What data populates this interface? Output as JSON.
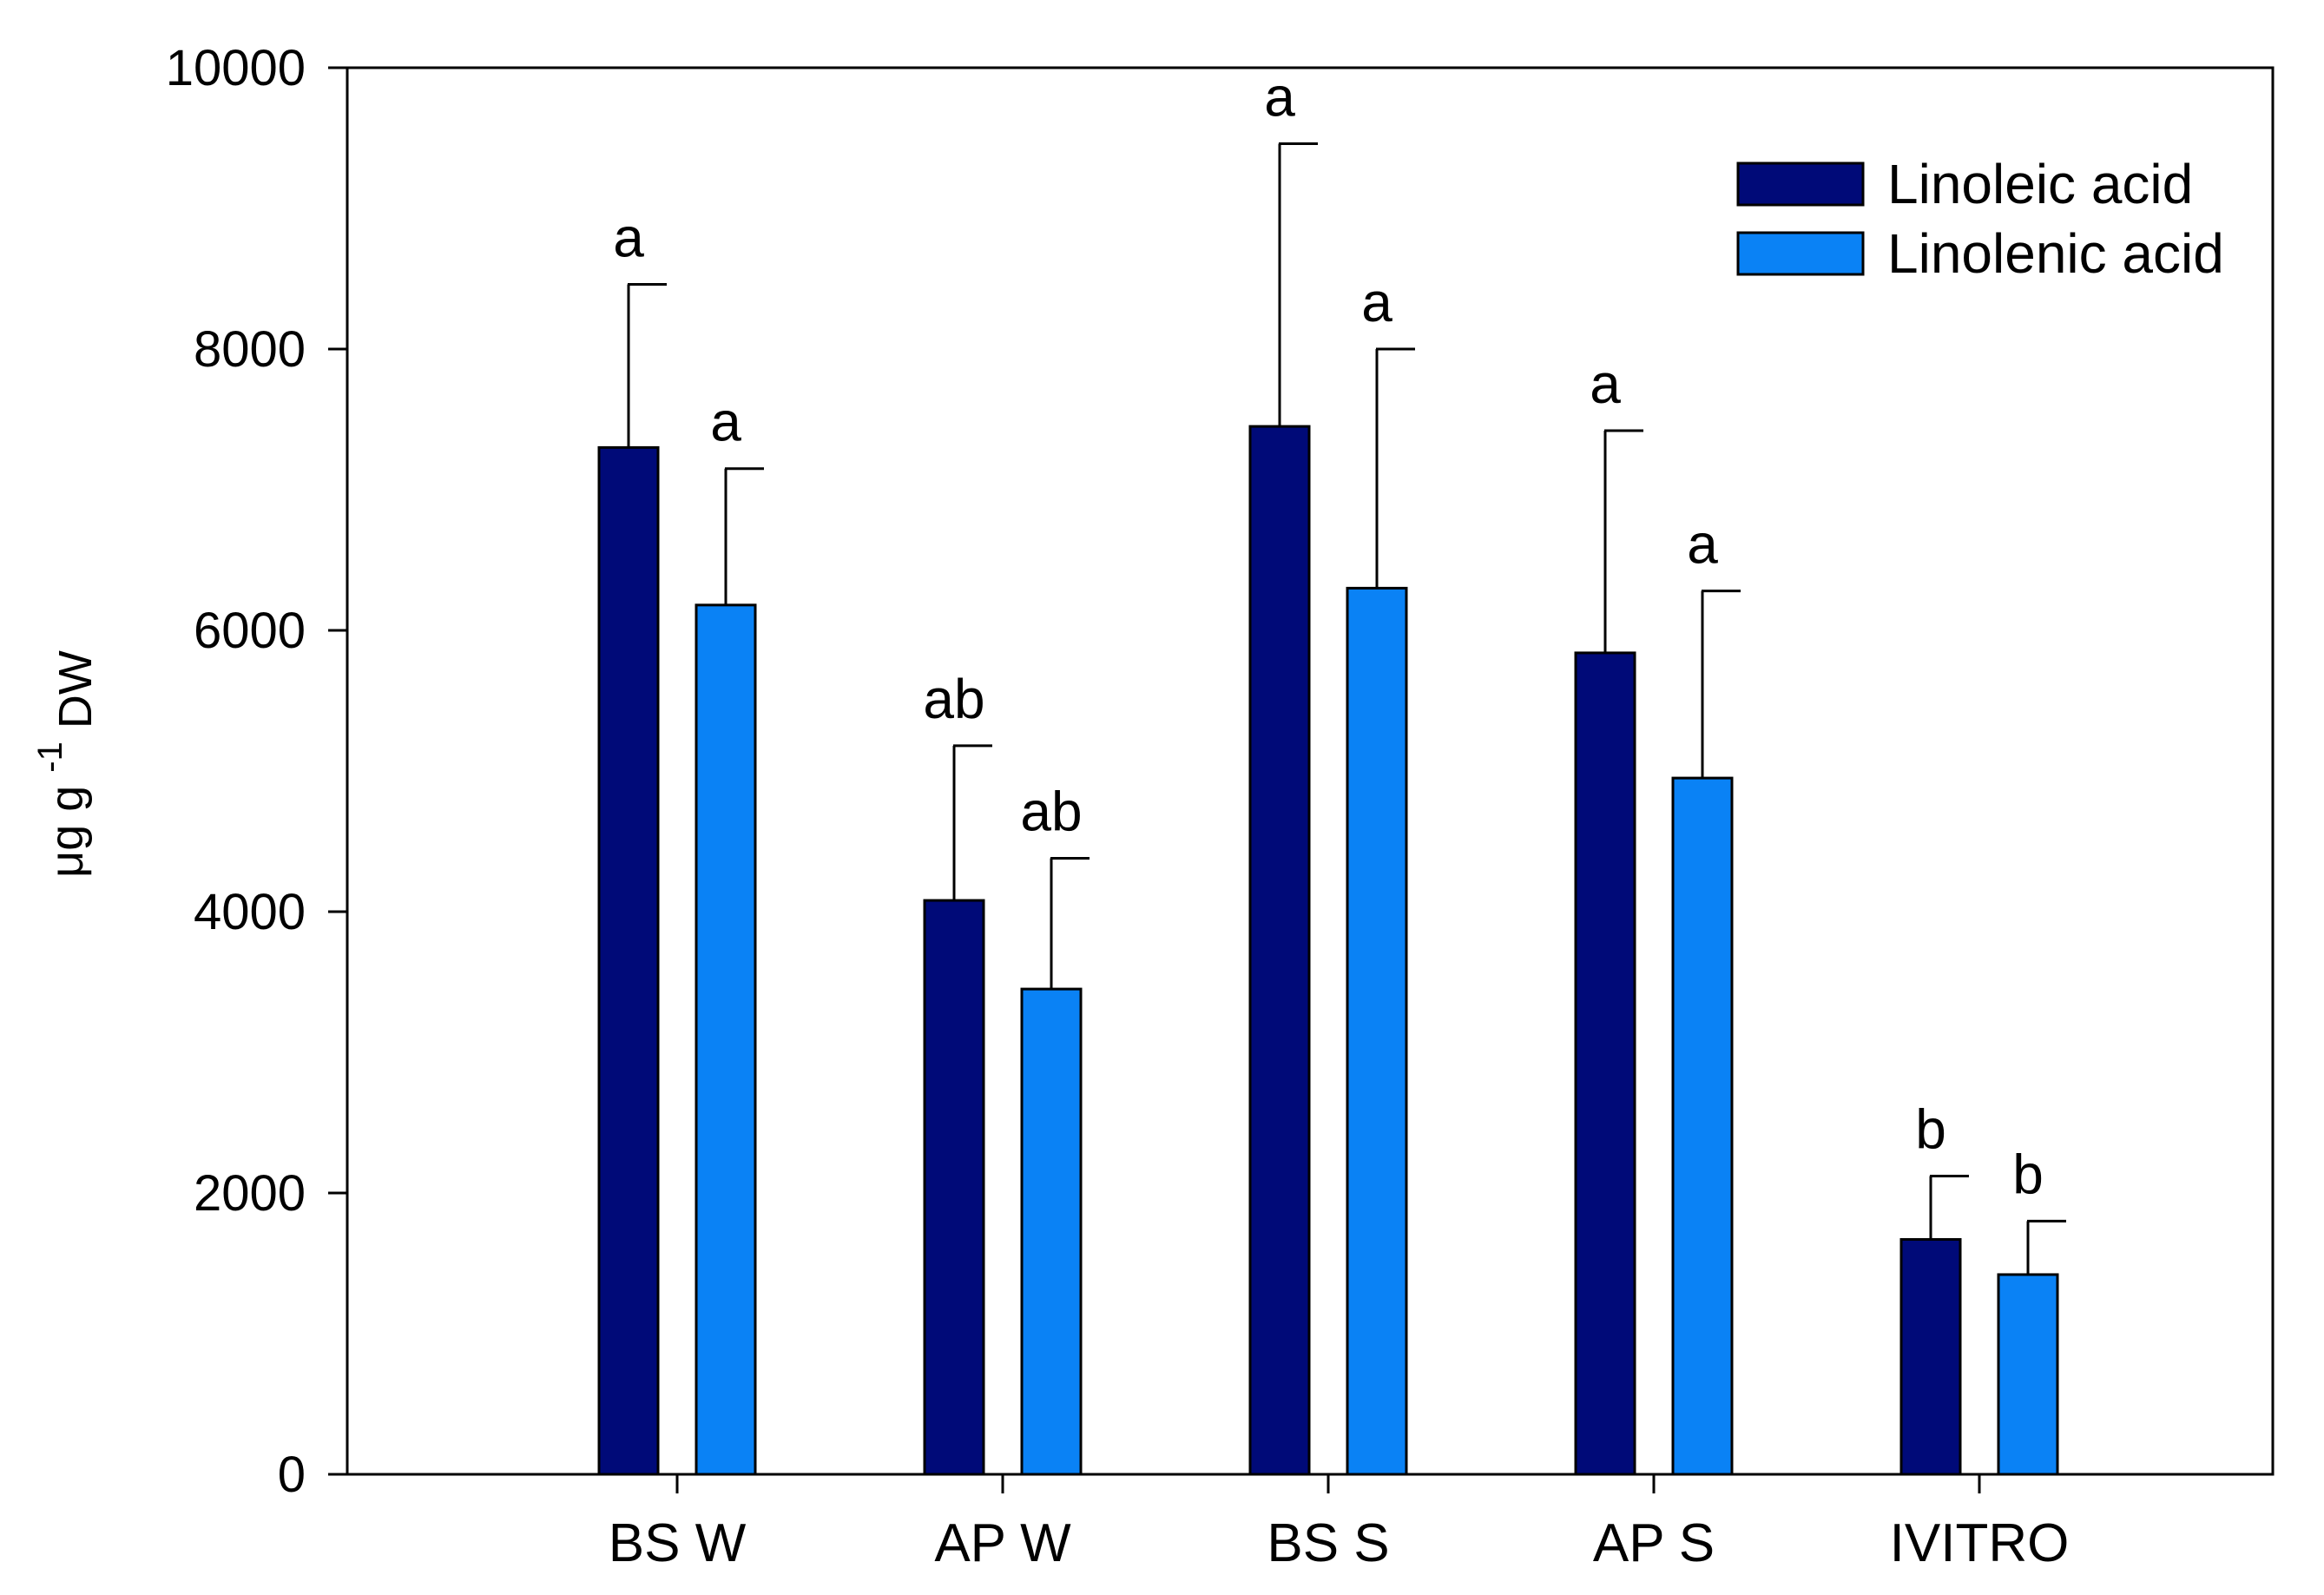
{
  "chart_data": {
    "type": "bar",
    "ylabel": {
      "base": "μg g",
      "superscript": "-1",
      "subscript": "DW"
    },
    "xlabel": "",
    "ylim": [
      0,
      10000
    ],
    "yticks": [
      0,
      2000,
      4000,
      6000,
      8000,
      10000
    ],
    "ytick_labels": [
      "0",
      "2000",
      "4000",
      "6000",
      "8000",
      "10000"
    ],
    "categories": [
      "BS W",
      "AP W",
      "BS S",
      "AP S",
      "IVITRO"
    ],
    "series": [
      {
        "name": "Linoleic acid",
        "color": "#000a78",
        "values": [
          7300,
          4080,
          7450,
          5840,
          1670
        ],
        "errors": [
          1160,
          1100,
          2010,
          1580,
          450
        ],
        "significance": [
          "a",
          "ab",
          "a",
          "a",
          "b"
        ]
      },
      {
        "name": "Linolenic acid",
        "color": "#0a82f5",
        "values": [
          6180,
          3450,
          6300,
          4950,
          1420
        ],
        "errors": [
          970,
          930,
          1700,
          1330,
          380
        ],
        "significance": [
          "a",
          "ab",
          "a",
          "a",
          "b"
        ]
      }
    ],
    "legend_position": "top-right",
    "grid": false
  }
}
